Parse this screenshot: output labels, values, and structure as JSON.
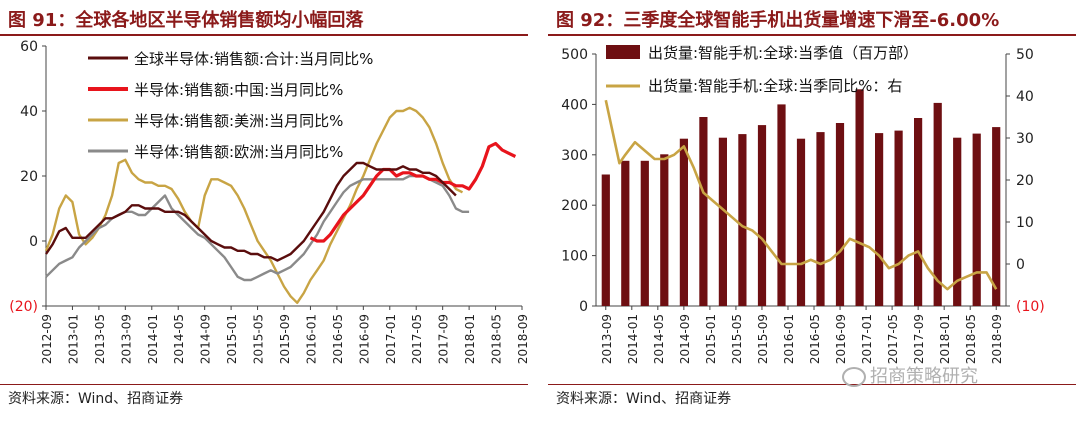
{
  "left": {
    "title": "图 91：全球各地区半导体销售额均小幅回落",
    "source": "资料来源：Wind、招商证券"
  },
  "right": {
    "title": "图 92：三季度全球智能手机出货量增速下滑至-6.00%",
    "source": "资料来源：Wind、招商证券"
  },
  "watermark": "招商策略研究",
  "chart_data": [
    {
      "type": "line",
      "title": "图 91：全球各地区半导体销售额均小幅回落",
      "xlabel": "",
      "ylabel": "",
      "ylim": [
        -20,
        60
      ],
      "yticks": [
        -20,
        0,
        20,
        40,
        60
      ],
      "ytick_labels": [
        "(20)",
        "0",
        "20",
        "40",
        "60"
      ],
      "x_tick_labels": [
        "2012-09",
        "2013-01",
        "2013-05",
        "2013-09",
        "2014-01",
        "2014-05",
        "2014-09",
        "2015-01",
        "2015-05",
        "2015-09",
        "2016-01",
        "2016-05",
        "2016-09",
        "2017-01",
        "2017-05",
        "2017-09",
        "2018-01",
        "2018-05",
        "2018-09"
      ],
      "legend_position": "top-left",
      "grid": false,
      "series": [
        {
          "name": "全球半导体:销售额:合计:当月同比%",
          "color": "#5a0d0d",
          "start": "2012-09",
          "values": [
            -4,
            -1,
            3,
            4,
            1,
            1,
            1,
            3,
            5,
            7,
            7,
            8,
            9,
            11,
            11,
            10,
            10,
            10,
            9,
            9,
            9,
            8,
            6,
            4,
            2,
            0,
            -1,
            -2,
            -2,
            -3,
            -3,
            -4,
            -4,
            -5,
            -5,
            -6,
            -5,
            -4,
            -2,
            0,
            3,
            6,
            9,
            13,
            17,
            20,
            22,
            24,
            24,
            23,
            22,
            22,
            22,
            22,
            23,
            22,
            22,
            21,
            21,
            20,
            18,
            16,
            14
          ]
        },
        {
          "name": "半导体:销售额:中国:当月同比%",
          "color": "#e8141c",
          "start": "2016-01",
          "values": [
            1,
            0,
            0,
            2,
            5,
            8,
            10,
            12,
            14,
            17,
            20,
            22,
            22,
            20,
            21,
            21,
            20,
            20,
            19,
            19,
            18,
            18,
            17,
            17,
            16,
            19,
            23,
            29,
            30,
            28,
            27,
            26
          ]
        },
        {
          "name": "半导体:销售额:美洲:当月同比%",
          "color": "#c8a444",
          "start": "2012-09",
          "values": [
            -3,
            2,
            10,
            14,
            12,
            2,
            -1,
            1,
            4,
            8,
            14,
            24,
            25,
            21,
            19,
            18,
            18,
            17,
            17,
            16,
            13,
            9,
            6,
            4,
            14,
            19,
            19,
            18,
            17,
            14,
            10,
            5,
            0,
            -3,
            -6,
            -10,
            -14,
            -17,
            -19,
            -16,
            -12,
            -9,
            -6,
            -1,
            3,
            7,
            11,
            16,
            20,
            25,
            30,
            34,
            38,
            40,
            40,
            41,
            40,
            38,
            35,
            30,
            24,
            19,
            16,
            15
          ]
        },
        {
          "name": "半导体:销售额:欧洲:当月同比%",
          "color": "#8a8a8a",
          "start": "2012-09",
          "values": [
            -11,
            -9,
            -7,
            -6,
            -5,
            -2,
            0,
            2,
            4,
            5,
            7,
            8,
            9,
            9,
            8,
            8,
            10,
            12,
            14,
            10,
            8,
            6,
            4,
            2,
            1,
            -1,
            -3,
            -5,
            -8,
            -11,
            -12,
            -12,
            -11,
            -10,
            -9,
            -10,
            -9,
            -8,
            -6,
            -4,
            -1,
            2,
            6,
            9,
            12,
            15,
            17,
            18,
            19,
            19,
            19,
            19,
            19,
            19,
            19,
            20,
            20,
            20,
            19,
            18,
            17,
            14,
            10,
            9,
            9
          ]
        }
      ]
    },
    {
      "type": "bar",
      "title": "图 92：三季度全球智能手机出货量增速下滑至-6.00%",
      "xlabel": "",
      "ylabel": "",
      "ylim": [
        0,
        500
      ],
      "yticks": [
        0,
        100,
        200,
        300,
        400,
        500
      ],
      "y2lim": [
        -10,
        50
      ],
      "y2ticks": [
        -10,
        0,
        10,
        20,
        30,
        40,
        50
      ],
      "y2tick_labels": [
        "(10)",
        "0",
        "10",
        "20",
        "30",
        "40",
        "50"
      ],
      "categories": [
        "2013-09",
        "2013-12",
        "2014-03",
        "2014-06",
        "2014-09",
        "2014-12",
        "2015-03",
        "2015-06",
        "2015-09",
        "2015-12",
        "2016-03",
        "2016-06",
        "2016-09",
        "2016-12",
        "2017-03",
        "2017-06",
        "2017-09",
        "2017-12",
        "2018-03",
        "2018-06",
        "2018-09"
      ],
      "x_tick_labels": [
        "2013-09",
        "2014-01",
        "2014-05",
        "2014-09",
        "2015-01",
        "2015-05",
        "2015-09",
        "2016-01",
        "2016-05",
        "2016-09",
        "2017-01",
        "2017-05",
        "2017-09",
        "2018-01",
        "2018-05",
        "2018-09"
      ],
      "legend_position": "top-left",
      "grid": false,
      "series": [
        {
          "name": "出货量:智能手机:全球:当季值（百万部）",
          "type": "bar",
          "axis": "left",
          "color": "#6e0f12",
          "values": [
            261,
            288,
            288,
            301,
            332,
            375,
            334,
            341,
            359,
            400,
            332,
            345,
            363,
            430,
            343,
            348,
            373,
            403,
            334,
            342,
            355
          ]
        },
        {
          "name": "出货量:智能手机:全球:当季同比%：右",
          "type": "line",
          "axis": "right",
          "color": "#c8a444",
          "x": [
            0,
            0.7,
            1,
            1.5,
            2,
            2.5,
            3,
            3.5,
            4,
            4.5,
            5,
            5.5,
            6,
            6.5,
            7,
            7.5,
            8,
            8.5,
            9,
            9.5,
            10,
            10.5,
            11,
            11.5,
            12,
            12.5,
            13,
            13.5,
            14,
            14.5,
            15,
            15.5,
            16,
            16.5,
            17,
            17.5,
            18,
            18.5,
            19,
            19.5,
            20
          ],
          "values": [
            39,
            24,
            26,
            29,
            27,
            25,
            25,
            26,
            28,
            23,
            17,
            15,
            13,
            11,
            9,
            8,
            6,
            3,
            0,
            0,
            0,
            1,
            0,
            1,
            3,
            6,
            5,
            4,
            2,
            -1,
            0,
            2,
            3,
            -1,
            -4,
            -6,
            -4,
            -3,
            -2,
            -2,
            -6
          ]
        }
      ]
    }
  ]
}
